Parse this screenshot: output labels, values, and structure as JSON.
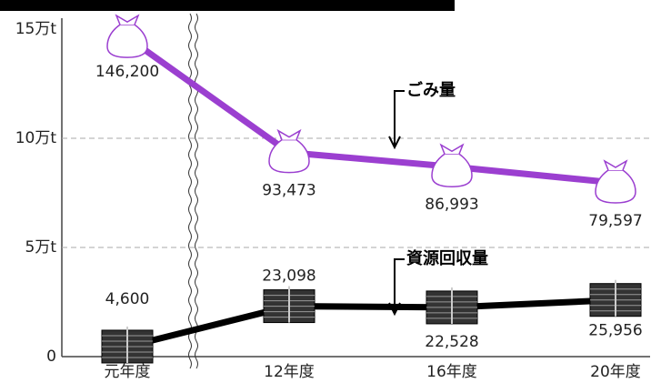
{
  "chart_data": {
    "type": "line",
    "categories": [
      "元年度",
      "12年度",
      "16年度",
      "20年度"
    ],
    "series": [
      {
        "name": "ごみ量",
        "color": "#9b3fd0",
        "values": [
          146200,
          93473,
          86993,
          79597
        ],
        "value_labels": [
          "146,200",
          "93,473",
          "86,993",
          "79,597"
        ]
      },
      {
        "name": "資源回収量",
        "color": "#000000",
        "values": [
          4600,
          23098,
          22528,
          25956
        ],
        "value_labels": [
          "4,600",
          "23,098",
          "22,528",
          "25,956"
        ]
      }
    ],
    "ylim": [
      0,
      150000
    ],
    "yticks": [
      {
        "value": 0,
        "label": "0"
      },
      {
        "value": 50000,
        "label": "5万t"
      },
      {
        "value": 100000,
        "label": "10万t"
      },
      {
        "value": 150000,
        "label": "15万t"
      }
    ],
    "grid": true
  }
}
